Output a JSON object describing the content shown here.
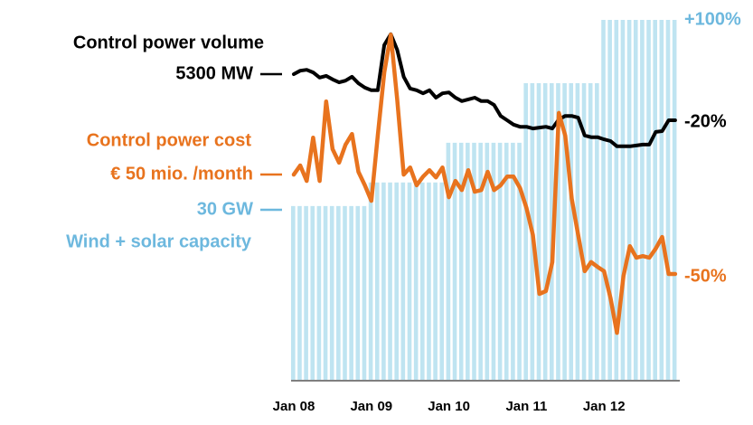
{
  "chart_data": {
    "type": "line",
    "categories": [
      "Jan 08",
      null,
      null,
      null,
      null,
      null,
      null,
      null,
      null,
      null,
      null,
      null,
      "Jan 09",
      null,
      null,
      null,
      null,
      null,
      null,
      null,
      null,
      null,
      null,
      null,
      "Jan 10",
      null,
      null,
      null,
      null,
      null,
      null,
      null,
      null,
      null,
      null,
      null,
      "Jan 11",
      null,
      null,
      null,
      null,
      null,
      null,
      null,
      null,
      null,
      null,
      null,
      "Jan 12",
      null,
      null,
      null,
      null,
      null,
      null,
      null,
      null,
      null,
      null,
      null
    ],
    "series": [
      {
        "name": "Wind + solar capacity",
        "type": "bar",
        "color": "#bfe4f1",
        "label_color": "#6db8de",
        "start_label": "30 GW",
        "end_label": "+100%",
        "ylim": [
          2,
          60
        ],
        "values": [
          30,
          30,
          30,
          30,
          30,
          30,
          30,
          30,
          30,
          30,
          30,
          30,
          33.8,
          33.8,
          33.8,
          33.8,
          33.8,
          33.8,
          33.8,
          33.8,
          33.8,
          33.8,
          33.8,
          33.8,
          40.2,
          40.2,
          40.2,
          40.2,
          40.2,
          40.2,
          40.2,
          40.2,
          40.2,
          40.2,
          40.2,
          40.2,
          49.8,
          49.8,
          49.8,
          49.8,
          49.8,
          49.8,
          49.8,
          49.8,
          49.8,
          49.8,
          49.8,
          49.8,
          60,
          60,
          60,
          60,
          60,
          60,
          60,
          60,
          60,
          60,
          60,
          60
        ]
      },
      {
        "name": "Control power volume",
        "type": "line",
        "color": "#000000",
        "label_color": "#000000",
        "start_label": "5300 MW",
        "end_label": "-20%",
        "ylim": [
          -1730,
          6548
        ],
        "values": [
          5300,
          5380,
          5400,
          5340,
          5220,
          5260,
          5180,
          5110,
          5150,
          5240,
          5090,
          4990,
          4930,
          4930,
          5970,
          6220,
          5860,
          5240,
          4970,
          4930,
          4860,
          4930,
          4760,
          4860,
          4880,
          4760,
          4680,
          4720,
          4760,
          4680,
          4680,
          4590,
          4340,
          4240,
          4140,
          4090,
          4090,
          4050,
          4070,
          4090,
          4050,
          4260,
          4340,
          4340,
          4300,
          3890,
          3850,
          3850,
          3800,
          3760,
          3640,
          3640,
          3640,
          3660,
          3680,
          3680,
          3970,
          3990,
          4240,
          4240
        ]
      },
      {
        "name": "Control power cost",
        "type": "line",
        "color": "#e8731e",
        "label_color": "#e8731e",
        "start_label": "€ 50 mio. /month",
        "end_label": "-50%",
        "ylim": [
          -1.6,
          88.9
        ],
        "values": [
          50,
          52.3,
          48.4,
          59.3,
          48.4,
          68.4,
          56.4,
          53.0,
          57.5,
          60.2,
          50.7,
          47.3,
          43.4,
          59.8,
          75.7,
          85.2,
          68.9,
          50,
          51.8,
          47.3,
          49.5,
          51.1,
          49.3,
          51.8,
          44.3,
          48.4,
          46.1,
          51.1,
          45.7,
          46.1,
          50.7,
          46.1,
          47.3,
          49.5,
          49.5,
          46.6,
          41.6,
          34.8,
          20.0,
          20.7,
          28.0,
          65.5,
          59.8,
          43.9,
          34.8,
          25.7,
          28.0,
          26.8,
          25.7,
          18.9,
          10.2,
          24.5,
          32.0,
          29.1,
          29.5,
          29.1,
          31.4,
          34.3,
          25.0,
          25.0
        ]
      }
    ]
  }
}
